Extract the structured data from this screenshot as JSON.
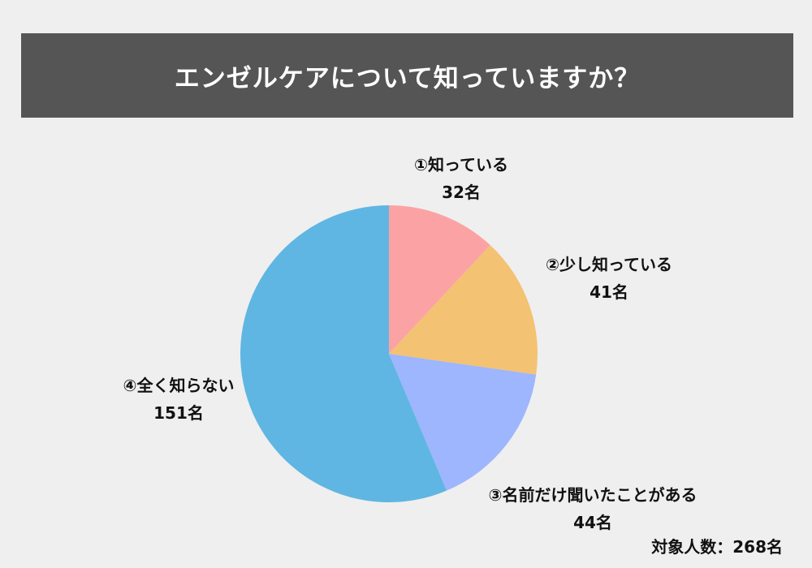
{
  "title": "エンゼルケアについて知っていますか？",
  "labels": [
    {
      "name": "①知っている",
      "count": "32名"
    },
    {
      "name": "②少し知っている",
      "count": "41名"
    },
    {
      "name": "③名前だけ聞いたことがある",
      "count": "44名"
    },
    {
      "name": "④全く知らない",
      "count": "151名"
    }
  ],
  "total": "対象人数：268名",
  "colors": {
    "background": "#efefef",
    "title_bar": "#555555",
    "slice_1": "#fba3a4",
    "slice_2": "#f3c272",
    "slice_3": "#9db6fd",
    "slice_4": "#5fb6e2"
  },
  "chart_data": {
    "type": "pie",
    "title": "エンゼルケアについて知っていますか？",
    "categories": [
      "①知っている",
      "②少し知っている",
      "③名前だけ聞いたことがある",
      "④全く知らない"
    ],
    "values": [
      32,
      41,
      44,
      151
    ],
    "unit": "名",
    "total": 268,
    "start_angle": "12 o'clock",
    "direction": "clockwise",
    "legend": "none (direct labels)"
  }
}
